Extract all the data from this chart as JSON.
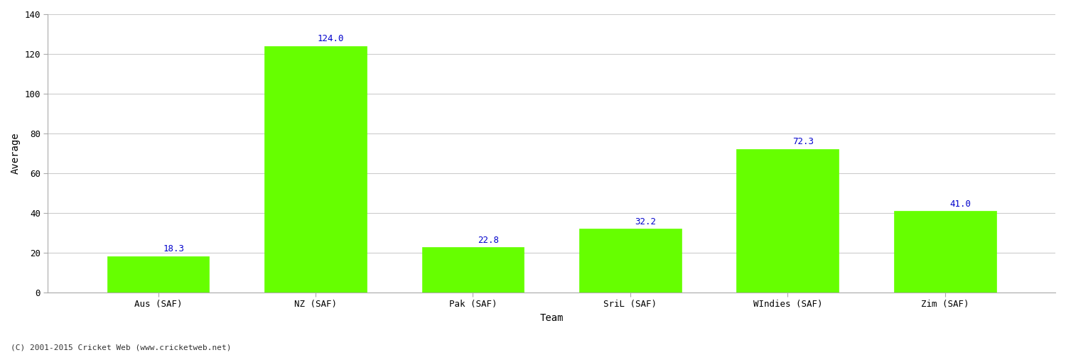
{
  "categories": [
    "Aus (SAF)",
    "NZ (SAF)",
    "Pak (SAF)",
    "SriL (SAF)",
    "WIndies (SAF)",
    "Zim (SAF)"
  ],
  "values": [
    18.3,
    124.0,
    22.8,
    32.2,
    72.3,
    41.0
  ],
  "bar_color": "#66ff00",
  "bar_edge_color": "#66ff00",
  "xlabel": "Team",
  "ylabel": "Average",
  "ylim": [
    0,
    140
  ],
  "yticks": [
    0,
    20,
    40,
    60,
    80,
    100,
    120,
    140
  ],
  "value_label_color": "#0000cc",
  "value_label_fontsize": 9,
  "xlabel_fontsize": 10,
  "ylabel_fontsize": 10,
  "tick_label_fontsize": 9,
  "grid_color": "#cccccc",
  "background_color": "#ffffff",
  "footer_text": "(C) 2001-2015 Cricket Web (www.cricketweb.net)",
  "footer_fontsize": 8,
  "footer_color": "#333333",
  "bar_width": 0.65,
  "spine_color": "#aaaaaa"
}
